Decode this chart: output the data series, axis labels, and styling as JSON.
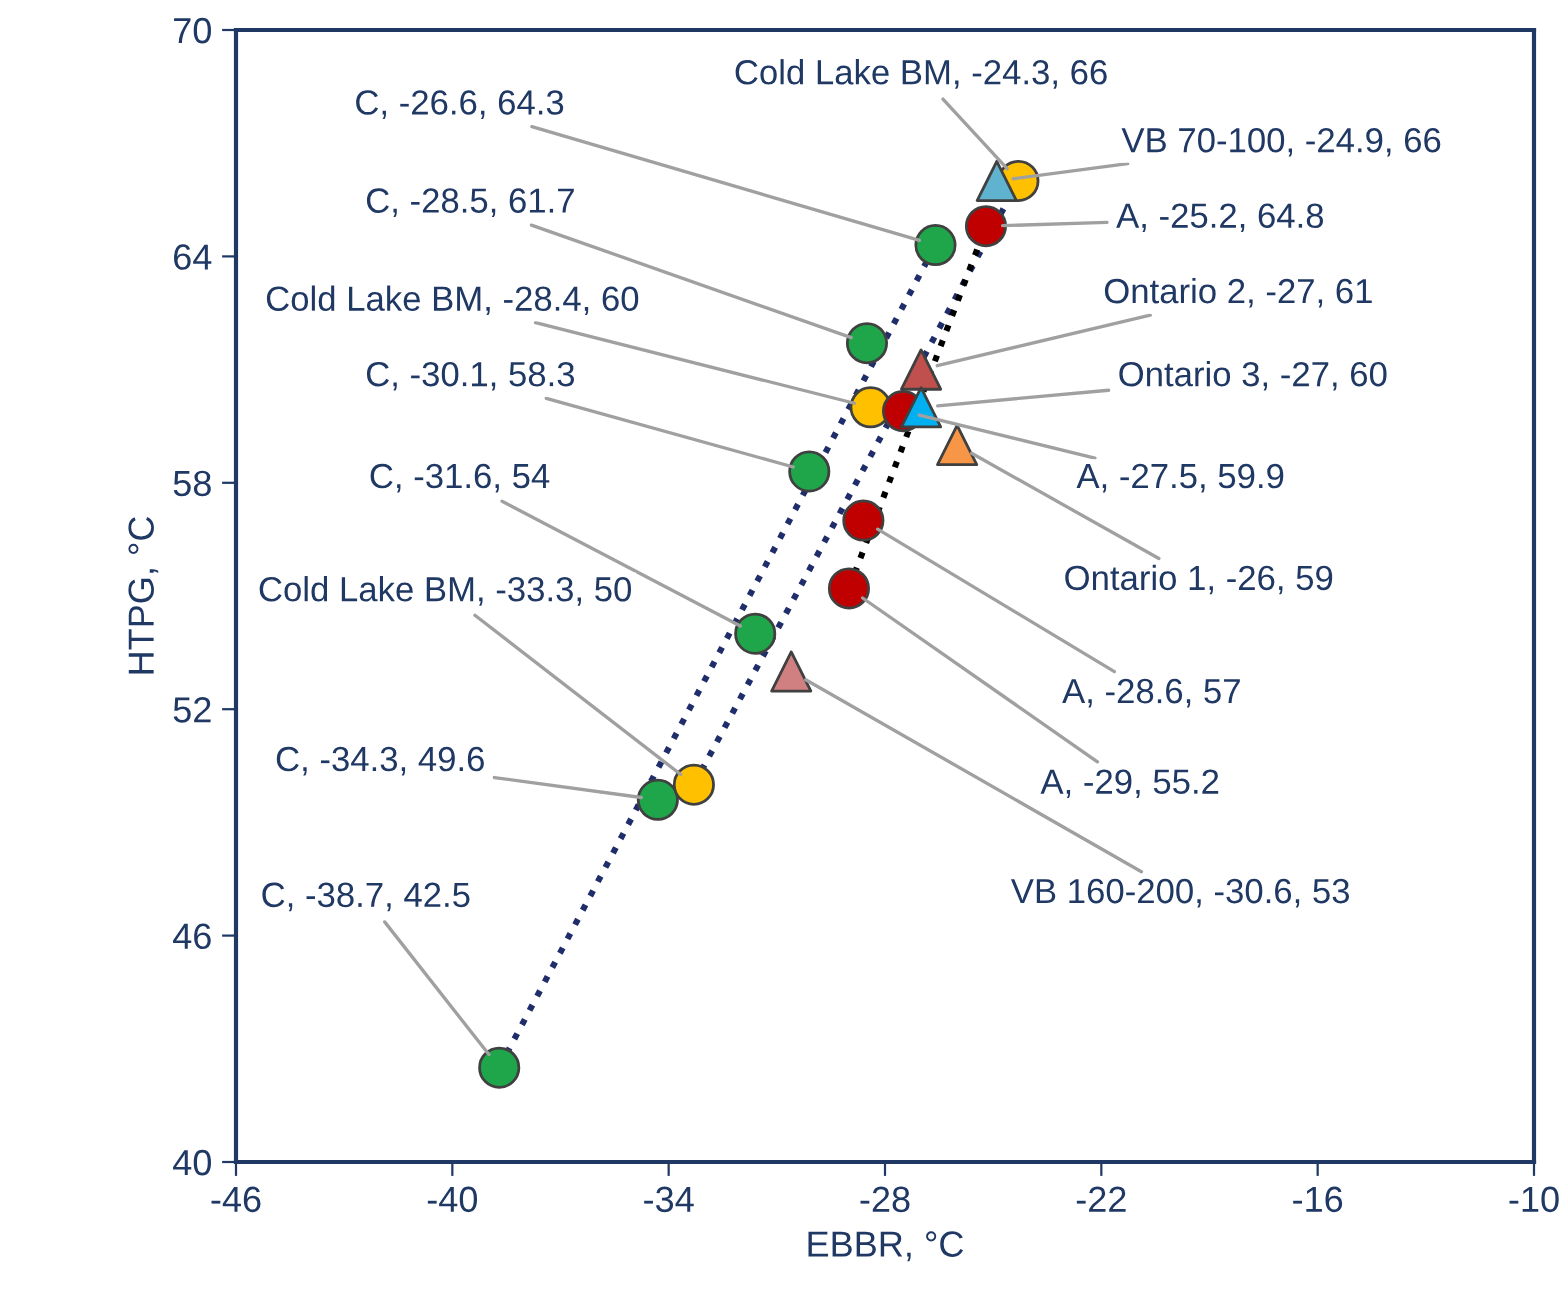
{
  "chart_data": {
    "type": "scatter",
    "xlabel": "EBBR, °C",
    "ylabel": "HTPG, °C",
    "xlim": [
      -46,
      -10
    ],
    "xticks": [
      -46,
      -40,
      -34,
      -28,
      -22,
      -16,
      -10
    ],
    "ylim": [
      40,
      70
    ],
    "yticks": [
      40,
      46,
      52,
      58,
      64,
      70
    ],
    "grid": false,
    "legend": false,
    "series": [
      {
        "type": "line",
        "x": [
          -38.7,
          -26.6
        ],
        "values": [
          42.5,
          64.3
        ],
        "color": "#1f2d6b",
        "line_style": "dotted",
        "marker": "none"
      },
      {
        "type": "line",
        "x": [
          -33.3,
          -24.3
        ],
        "values": [
          50,
          66
        ],
        "color": "#1f2d6b",
        "line_style": "dotted",
        "marker": "none"
      },
      {
        "type": "line",
        "x": [
          -29,
          -25.2
        ],
        "values": [
          55.2,
          64.8
        ],
        "color": "#000000",
        "line_style": "dotted",
        "marker": "none"
      },
      {
        "x": [
          -26.6,
          -28.5,
          -30.1,
          -31.6,
          -34.3,
          -38.7
        ],
        "values": [
          64.3,
          61.7,
          58.3,
          54,
          49.6,
          42.5
        ],
        "color": "#1fa64a",
        "marker": "circle"
      },
      {
        "x": [
          -24.3,
          -28.4,
          -33.3
        ],
        "values": [
          66,
          60,
          50
        ],
        "color": "#ffc000",
        "marker": "circle"
      },
      {
        "x": [
          -25.2,
          -27.5,
          -28.6,
          -29
        ],
        "values": [
          64.8,
          59.9,
          57,
          55.2
        ],
        "color": "#c00000",
        "marker": "circle"
      },
      {
        "x": [
          -24.9
        ],
        "values": [
          66
        ],
        "color": "#5fb3cf",
        "marker": "triangle"
      },
      {
        "x": [
          -27
        ],
        "values": [
          61
        ],
        "color": "#c0504d",
        "marker": "triangle"
      },
      {
        "x": [
          -27
        ],
        "values": [
          60
        ],
        "color": "#00b0f0",
        "marker": "triangle"
      },
      {
        "x": [
          -26
        ],
        "values": [
          59
        ],
        "color": "#f79646",
        "marker": "triangle"
      },
      {
        "x": [
          -30.6
        ],
        "values": [
          53
        ],
        "color": "#d08080",
        "marker": "triangle"
      }
    ],
    "annotations": [
      {
        "text": "C, -26.6, 64.3",
        "x": -26.6,
        "y": 64.3
      },
      {
        "text": "C, -28.5, 61.7",
        "x": -28.5,
        "y": 61.7
      },
      {
        "text": "Cold Lake BM, -28.4, 60",
        "x": -28.4,
        "y": 60
      },
      {
        "text": "C, -30.1, 58.3",
        "x": -30.1,
        "y": 58.3
      },
      {
        "text": "C, -31.6, 54",
        "x": -31.6,
        "y": 54
      },
      {
        "text": "Cold Lake BM, -33.3, 50",
        "x": -33.3,
        "y": 50
      },
      {
        "text": "C, -34.3, 49.6",
        "x": -34.3,
        "y": 49.6
      },
      {
        "text": "C, -38.7, 42.5",
        "x": -38.7,
        "y": 42.5
      },
      {
        "text": "Cold Lake BM, -24.3, 66",
        "x": -24.3,
        "y": 66
      },
      {
        "text": "VB 70-100, -24.9, 66",
        "x": -24.9,
        "y": 66
      },
      {
        "text": "A, -25.2, 64.8",
        "x": -25.2,
        "y": 64.8
      },
      {
        "text": "Ontario 2, -27, 61",
        "x": -27,
        "y": 61
      },
      {
        "text": "Ontario 3, -27, 60",
        "x": -27,
        "y": 60
      },
      {
        "text": "A, -27.5, 59.9",
        "x": -27.5,
        "y": 59.9
      },
      {
        "text": "Ontario 1, -26, 59",
        "x": -26,
        "y": 59
      },
      {
        "text": "A, -28.6, 57",
        "x": -28.6,
        "y": 57
      },
      {
        "text": "A, -29, 55.2",
        "x": -29,
        "y": 55.2
      },
      {
        "text": "VB 160-200, -30.6, 53",
        "x": -30.6,
        "y": 53
      }
    ]
  }
}
